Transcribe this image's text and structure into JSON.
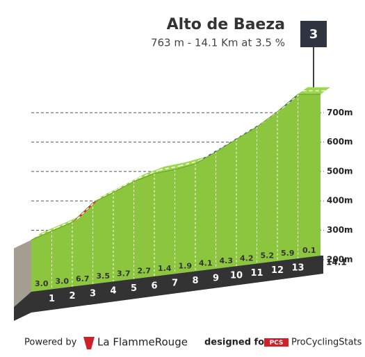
{
  "chart_data": {
    "type": "profile",
    "title": "Alto de Baeza",
    "subtitle": "763 m - 14.1 Km at 3.5 %",
    "category": "3",
    "x": [
      0,
      1,
      2,
      3,
      4,
      5,
      6,
      7,
      8,
      9,
      10,
      11,
      12,
      13,
      14.1
    ],
    "elevations": [
      267,
      297,
      327,
      394,
      429,
      466,
      493,
      507,
      526,
      567,
      610,
      652,
      704,
      763,
      763
    ],
    "gradients": {
      "values": [
        3.0,
        3.0,
        6.7,
        3.5,
        3.7,
        2.7,
        1.4,
        1.9,
        4.1,
        4.3,
        4.2,
        5.2,
        5.9,
        0.1
      ],
      "value_labels": [
        "3.0",
        "3.0",
        "6.7",
        "3.5",
        "3.7",
        "2.7",
        "1.4",
        "1.9",
        "4.1",
        "4.3",
        "4.2",
        "5.2",
        "5.9",
        "0.1"
      ],
      "colors": [
        "#9bd84a",
        "#9bd84a",
        "#e3202c",
        "#9bd84a",
        "#9bd84a",
        "#9bd84a",
        "#9bd84a",
        "#9bd84a",
        "#1f5b8e",
        "#1f5b8e",
        "#1f5b8e",
        "#1f5b8e",
        "#1f5b8e",
        "#9bd84a"
      ]
    },
    "face_color": "#8cc63f",
    "ylim": [
      150,
      800
    ],
    "yticks": [
      {
        "value": 200,
        "label": "200m"
      },
      {
        "value": 300,
        "label": "300m"
      },
      {
        "value": 400,
        "label": "400m"
      },
      {
        "value": 500,
        "label": "500m"
      },
      {
        "value": 600,
        "label": "600m"
      },
      {
        "value": 700,
        "label": "700m"
      }
    ]
  },
  "footer": {
    "powered_by": "Powered by",
    "brand": "La FlammeRouge",
    "designed_for": "designed for",
    "pcs_logo": "PCS",
    "pcs_name": "ProCyclingStats"
  }
}
